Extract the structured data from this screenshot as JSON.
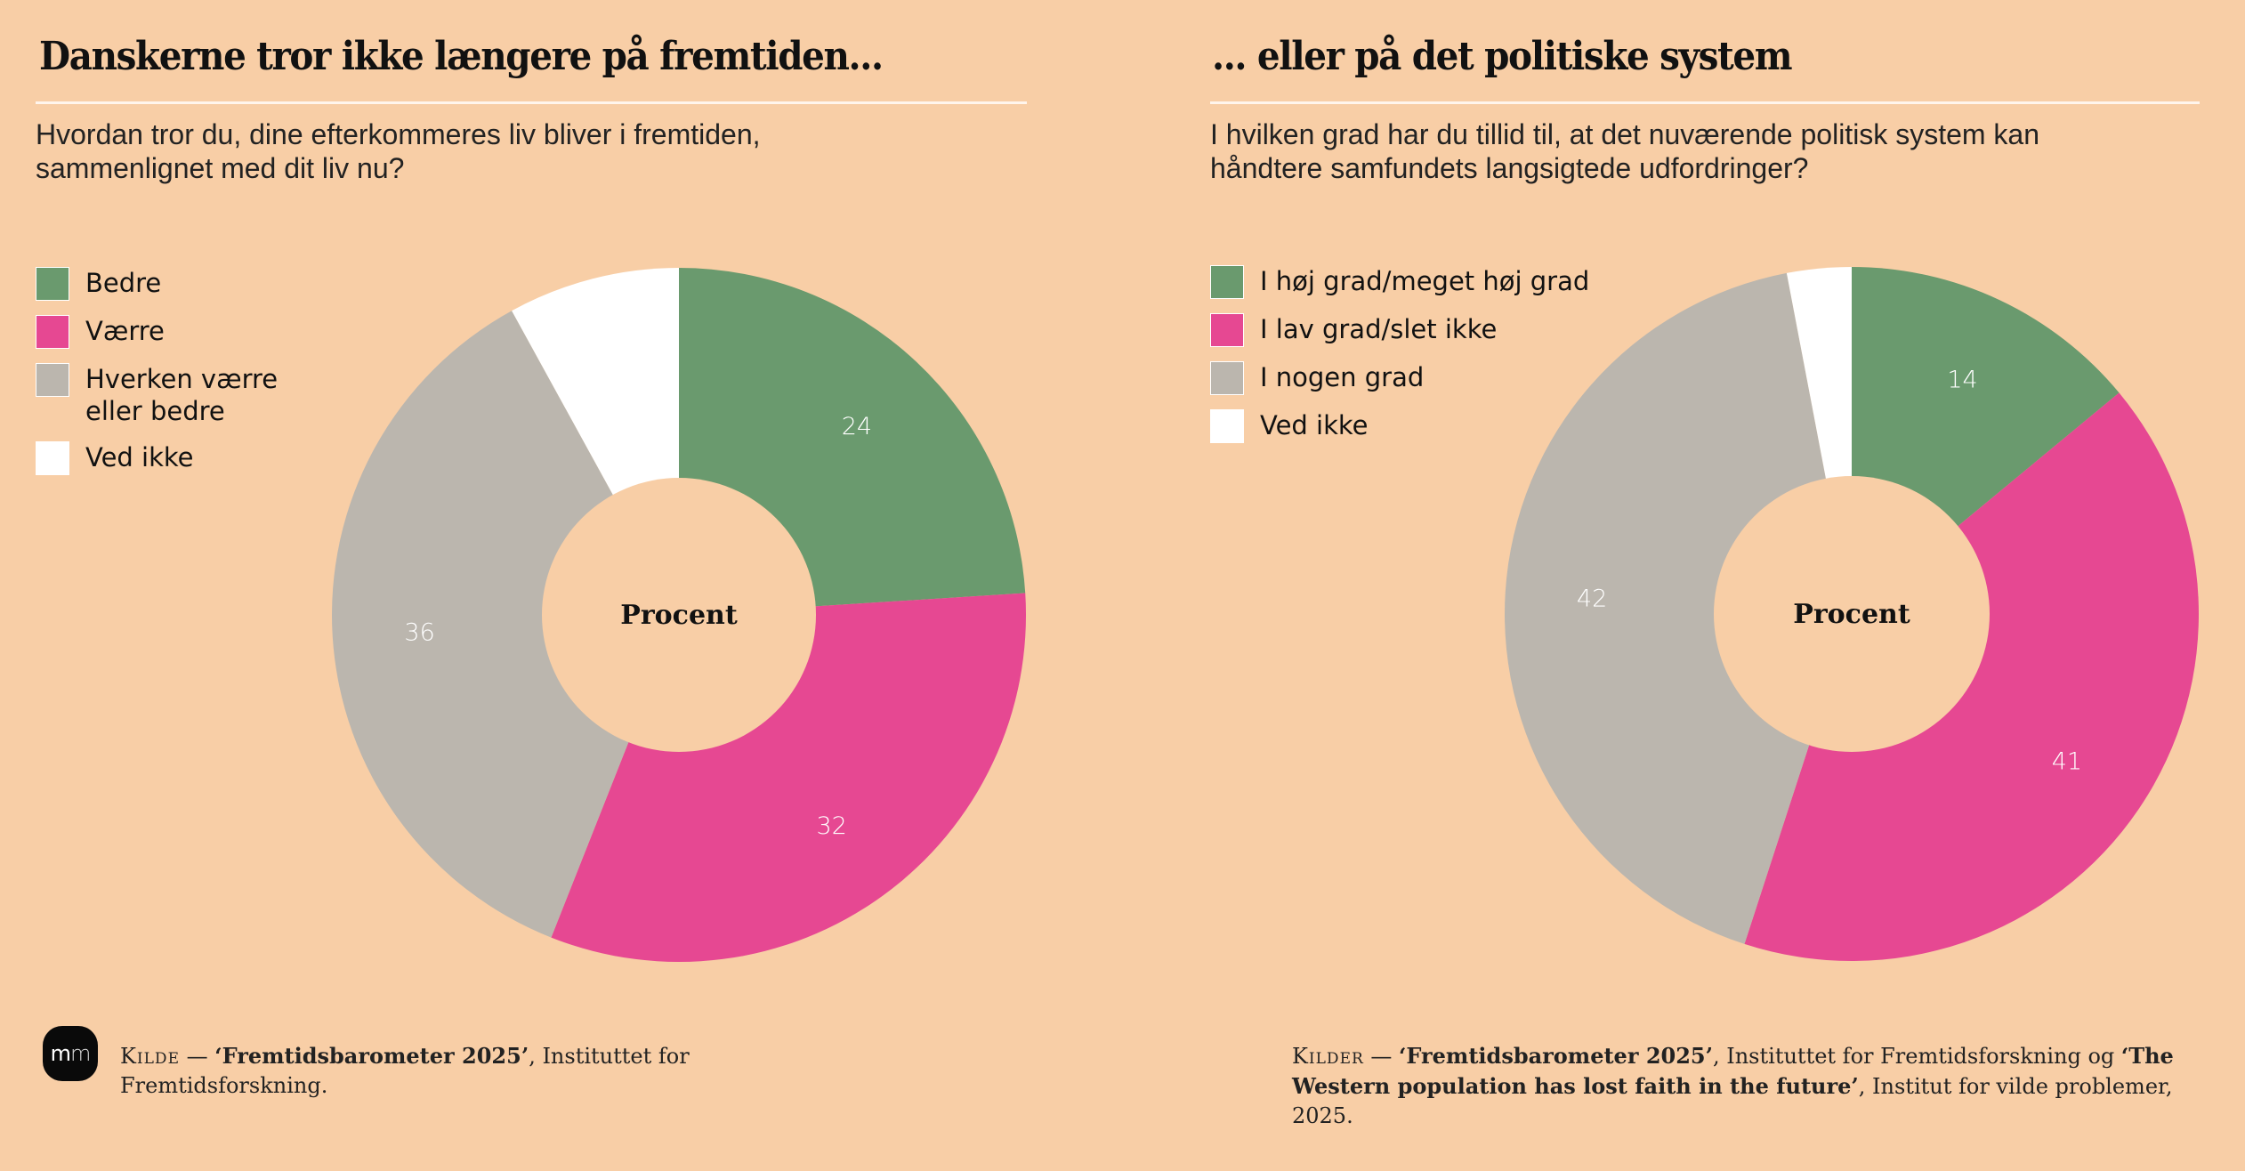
{
  "colors": {
    "background": "#F8CEA6",
    "green": "#6A9A6E",
    "pink": "#E64892",
    "gray": "#BBB6AE",
    "white": "#FFFFFF"
  },
  "logo": {
    "text_a": "m",
    "text_b": "m"
  },
  "left": {
    "title": "Danskerne tror ikke længere på fremtiden...",
    "subtitle_line1": "Hvordan tror du, dine efterkommeres liv bliver i fremtiden,",
    "subtitle_line2": "sammenlignet med dit liv nu?",
    "source": {
      "keyword": "Kilde",
      "dash": " — ",
      "title": "‘Fremtidsbarometer 2025’",
      "rest": ", Instituttet for Fremtidsforskning."
    }
  },
  "right": {
    "title": "... eller på det politiske system",
    "subtitle_line1": "I hvilken grad har du tillid til, at det nuværende politisk system kan",
    "subtitle_line2": "håndtere samfundets langsigtede udfordringer?",
    "source": {
      "keyword": "Kilder",
      "dash": " — ",
      "title": "‘Fremtidsbarometer 2025’",
      "mid": ", Instituttet for Fremtidsforskning og ",
      "title2": "‘The Western population has lost faith in the future’",
      "rest": ", Institut for vilde problemer, 2025."
    }
  },
  "chart_data": [
    {
      "type": "pie",
      "subtype": "donut",
      "title": "Danskerne tror ikke længere på fremtiden...",
      "subtitle": "Hvordan tror du, dine efterkommeres liv bliver i fremtiden, sammenlignet med dit liv nu?",
      "center_label": "Procent",
      "unit": "percent",
      "legend_position": "top-left",
      "slices": [
        {
          "label": "Bedre",
          "value": 24,
          "color": "#6A9A6E",
          "labeled": true
        },
        {
          "label": "Værre",
          "value": 32,
          "color": "#E64892",
          "labeled": true
        },
        {
          "label": "Hverken værre eller bedre",
          "label_line1": "Hverken værre",
          "label_line2": "eller bedre",
          "value": 36,
          "color": "#BBB6AE",
          "labeled": true
        },
        {
          "label": "Ved ikke",
          "value": 8,
          "color": "#FFFFFF",
          "labeled": false
        }
      ]
    },
    {
      "type": "pie",
      "subtype": "donut",
      "title": "... eller på det politiske system",
      "subtitle": "I hvilken grad har du tillid til, at det nuværende politisk system kan håndtere samfundets langsigtede udfordringer?",
      "center_label": "Procent",
      "unit": "percent",
      "legend_position": "top-left",
      "slices": [
        {
          "label": "I høj grad/meget høj grad",
          "value": 14,
          "color": "#6A9A6E",
          "labeled": true
        },
        {
          "label": "I lav grad/slet ikke",
          "value": 41,
          "color": "#E64892",
          "labeled": true
        },
        {
          "label": "I nogen grad",
          "value": 42,
          "color": "#BBB6AE",
          "labeled": true
        },
        {
          "label": "Ved ikke",
          "value": 3,
          "color": "#FFFFFF",
          "labeled": false
        }
      ]
    }
  ]
}
